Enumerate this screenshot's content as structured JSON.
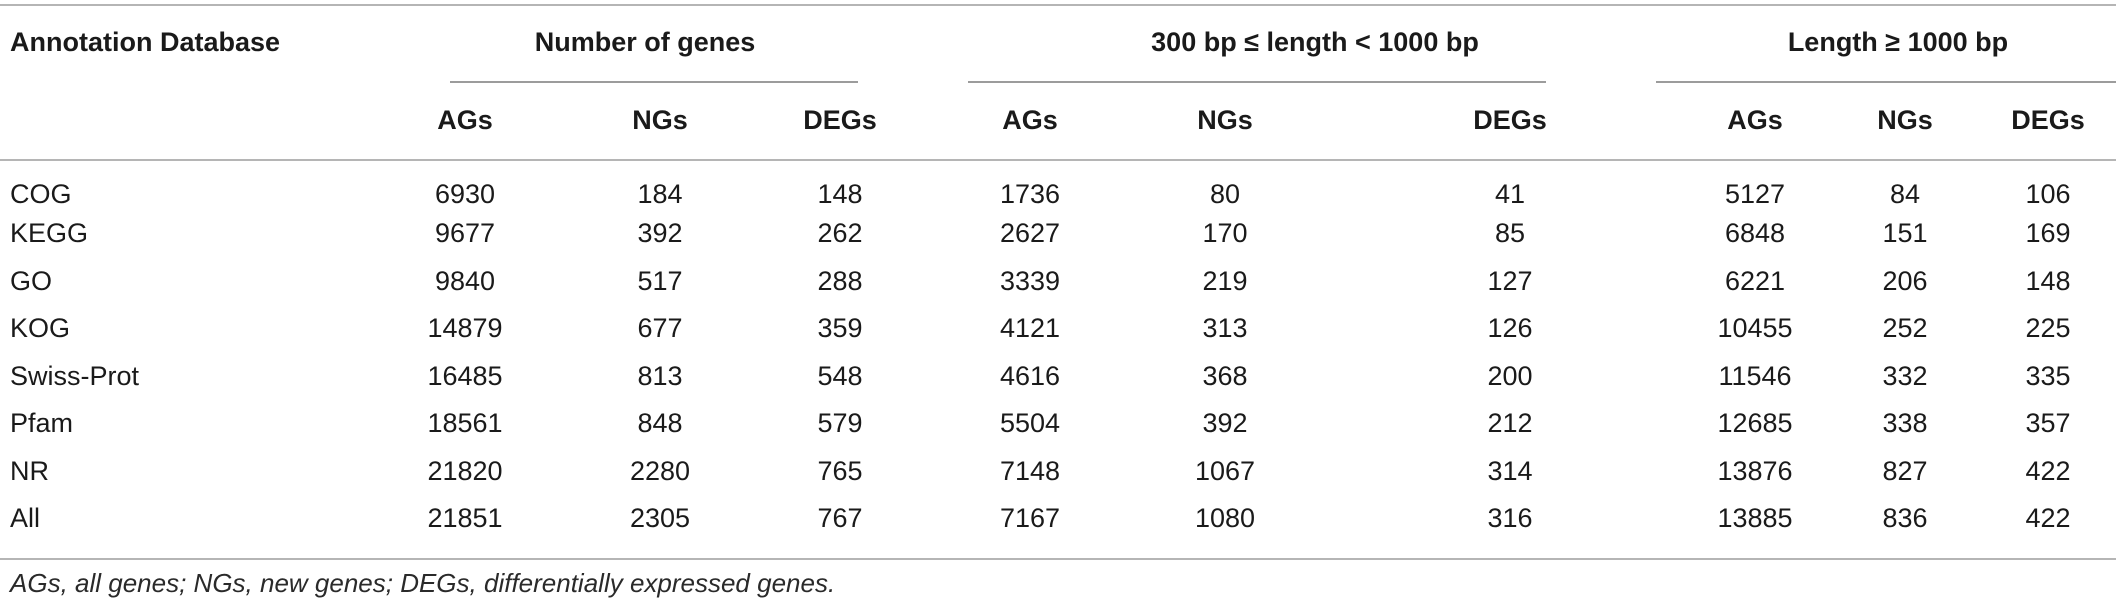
{
  "table": {
    "header": {
      "row_label": "Annotation Database",
      "groups": [
        "Number of genes",
        "300 bp ≤ length < 1000 bp",
        "Length ≥ 1000 bp"
      ],
      "subheaders": [
        "AGs",
        "NGs",
        "DEGs",
        "AGs",
        "NGs",
        "DEGs",
        "AGs",
        "NGs",
        "DEGs"
      ]
    },
    "rows": [
      {
        "label": "COG",
        "values": [
          "6930",
          "184",
          "148",
          "1736",
          "80",
          "41",
          "5127",
          "84",
          "106"
        ]
      },
      {
        "label": "KEGG",
        "values": [
          "9677",
          "392",
          "262",
          "2627",
          "170",
          "85",
          "6848",
          "151",
          "169"
        ]
      },
      {
        "label": "GO",
        "values": [
          "9840",
          "517",
          "288",
          "3339",
          "219",
          "127",
          "6221",
          "206",
          "148"
        ]
      },
      {
        "label": "KOG",
        "values": [
          "14879",
          "677",
          "359",
          "4121",
          "313",
          "126",
          "10455",
          "252",
          "225"
        ]
      },
      {
        "label": "Swiss-Prot",
        "values": [
          "16485",
          "813",
          "548",
          "4616",
          "368",
          "200",
          "11546",
          "332",
          "335"
        ]
      },
      {
        "label": "Pfam",
        "values": [
          "18561",
          "848",
          "579",
          "5504",
          "392",
          "212",
          "12685",
          "338",
          "357"
        ]
      },
      {
        "label": "NR",
        "values": [
          "21820",
          "2280",
          "765",
          "7148",
          "1067",
          "314",
          "13876",
          "827",
          "422"
        ]
      },
      {
        "label": "All",
        "values": [
          "21851",
          "2305",
          "767",
          "7167",
          "1080",
          "316",
          "13885",
          "836",
          "422"
        ]
      }
    ],
    "footnote": "AGs, all genes; NGs, new genes; DEGs, differentially expressed genes."
  }
}
